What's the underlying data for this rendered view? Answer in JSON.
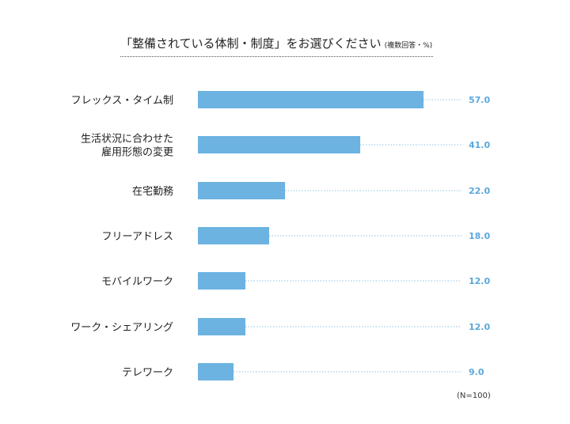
{
  "title": "「整備されている体制・制度」をお選びください",
  "title_note": "(複数回答・%)",
  "sample_note": "(N=100)",
  "colors": {
    "bar": "#6cb3e2",
    "value": "#5aa7dd",
    "leader": "#8cc4ea"
  },
  "chart_data": {
    "type": "bar",
    "orientation": "horizontal",
    "title": "「整備されている体制・制度」をお選びください",
    "xlabel": "",
    "ylabel": "",
    "xlim": [
      0,
      100
    ],
    "categories": [
      "フレックス・タイム制",
      "生活状況に合わせた\n雇用形態の変更",
      "在宅勤務",
      "フリーアドレス",
      "モバイルワーク",
      "ワーク・シェアリング",
      "テレワーク"
    ],
    "values": [
      57.0,
      41.0,
      22.0,
      18.0,
      12.0,
      12.0,
      9.0
    ],
    "value_labels": [
      "57.0",
      "41.0",
      "22.0",
      "18.0",
      "12.0",
      "12.0",
      "9.0"
    ]
  }
}
